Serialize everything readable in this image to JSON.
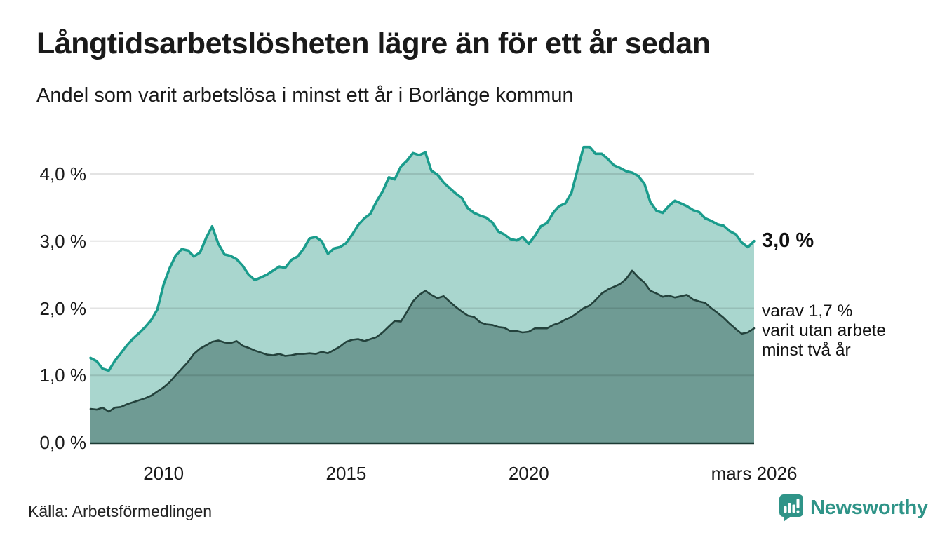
{
  "header": {
    "title": "Långtidsarbetslösheten lägre än för ett år sedan",
    "subtitle": "Andel som varit arbetslösa i minst ett år i Borlänge kommun"
  },
  "footer": {
    "source": "Källa: Arbetsförmedlingen",
    "brand": "Newsworthy",
    "brand_color": "#2f9488"
  },
  "chart_data": {
    "type": "area",
    "title": "Långtidsarbetslösheten lägre än för ett år sedan",
    "subtitle": "Andel som varit arbetslösa i minst ett år i Borlänge kommun",
    "unit": "%",
    "grid": true,
    "legend_position": "none",
    "xlabel": "",
    "ylabel": "",
    "ylim": [
      0,
      4.6
    ],
    "xlim": [
      2008,
      2026.25
    ],
    "y_axis": {
      "ticks": [
        {
          "label": "0,0 %",
          "v": 0
        },
        {
          "label": "1,0 %",
          "v": 1
        },
        {
          "label": "2,0 %",
          "v": 2
        },
        {
          "label": "3,0 %",
          "v": 3
        },
        {
          "label": "4,0 %",
          "v": 4
        }
      ]
    },
    "x_axis": {
      "ticks": [
        {
          "label": "2010",
          "t": 2010
        },
        {
          "label": "2015",
          "t": 2015
        },
        {
          "label": "2020",
          "t": 2020
        },
        {
          "label": "mars 2026",
          "t": 2026.17
        }
      ]
    },
    "annotations": {
      "end_value_label": "3,0 %",
      "sub_lines": [
        "varav 1,7 %",
        "varit utan arbete",
        "minst två år"
      ]
    },
    "series": [
      {
        "name": "Andel som varit arbetslösa i minst ett år",
        "line_color": "#1a9c8c",
        "fill_color": "#a9d6ce",
        "end_value": 3.0,
        "points": [
          [
            2008.0,
            1.26
          ],
          [
            2008.17,
            1.21
          ],
          [
            2008.33,
            1.1
          ],
          [
            2008.5,
            1.07
          ],
          [
            2008.67,
            1.22
          ],
          [
            2008.83,
            1.33
          ],
          [
            2009.0,
            1.45
          ],
          [
            2009.17,
            1.55
          ],
          [
            2009.33,
            1.63
          ],
          [
            2009.5,
            1.72
          ],
          [
            2009.67,
            1.83
          ],
          [
            2009.83,
            1.98
          ],
          [
            2010.0,
            2.35
          ],
          [
            2010.17,
            2.6
          ],
          [
            2010.33,
            2.78
          ],
          [
            2010.5,
            2.88
          ],
          [
            2010.67,
            2.86
          ],
          [
            2010.83,
            2.77
          ],
          [
            2011.0,
            2.83
          ],
          [
            2011.17,
            3.05
          ],
          [
            2011.33,
            3.22
          ],
          [
            2011.5,
            2.96
          ],
          [
            2011.67,
            2.8
          ],
          [
            2011.83,
            2.78
          ],
          [
            2012.0,
            2.73
          ],
          [
            2012.17,
            2.63
          ],
          [
            2012.33,
            2.5
          ],
          [
            2012.5,
            2.42
          ],
          [
            2012.67,
            2.46
          ],
          [
            2012.83,
            2.5
          ],
          [
            2013.0,
            2.56
          ],
          [
            2013.17,
            2.62
          ],
          [
            2013.33,
            2.6
          ],
          [
            2013.5,
            2.72
          ],
          [
            2013.67,
            2.77
          ],
          [
            2013.83,
            2.88
          ],
          [
            2014.0,
            3.04
          ],
          [
            2014.17,
            3.06
          ],
          [
            2014.33,
            3.0
          ],
          [
            2014.5,
            2.81
          ],
          [
            2014.67,
            2.89
          ],
          [
            2014.83,
            2.91
          ],
          [
            2015.0,
            2.97
          ],
          [
            2015.17,
            3.1
          ],
          [
            2015.33,
            3.24
          ],
          [
            2015.5,
            3.34
          ],
          [
            2015.67,
            3.41
          ],
          [
            2015.83,
            3.59
          ],
          [
            2016.0,
            3.74
          ],
          [
            2016.17,
            3.95
          ],
          [
            2016.33,
            3.92
          ],
          [
            2016.5,
            4.11
          ],
          [
            2016.67,
            4.2
          ],
          [
            2016.83,
            4.31
          ],
          [
            2017.0,
            4.28
          ],
          [
            2017.17,
            4.32
          ],
          [
            2017.33,
            4.05
          ],
          [
            2017.5,
            3.99
          ],
          [
            2017.67,
            3.87
          ],
          [
            2017.83,
            3.79
          ],
          [
            2018.0,
            3.71
          ],
          [
            2018.17,
            3.64
          ],
          [
            2018.33,
            3.49
          ],
          [
            2018.5,
            3.42
          ],
          [
            2018.67,
            3.38
          ],
          [
            2018.83,
            3.35
          ],
          [
            2019.0,
            3.28
          ],
          [
            2019.17,
            3.14
          ],
          [
            2019.33,
            3.1
          ],
          [
            2019.5,
            3.03
          ],
          [
            2019.67,
            3.01
          ],
          [
            2019.83,
            3.06
          ],
          [
            2020.0,
            2.96
          ],
          [
            2020.17,
            3.08
          ],
          [
            2020.33,
            3.22
          ],
          [
            2020.5,
            3.27
          ],
          [
            2020.67,
            3.42
          ],
          [
            2020.83,
            3.52
          ],
          [
            2021.0,
            3.56
          ],
          [
            2021.17,
            3.72
          ],
          [
            2021.33,
            4.05
          ],
          [
            2021.5,
            4.4
          ],
          [
            2021.67,
            4.4
          ],
          [
            2021.83,
            4.3
          ],
          [
            2022.0,
            4.3
          ],
          [
            2022.17,
            4.22
          ],
          [
            2022.33,
            4.13
          ],
          [
            2022.5,
            4.09
          ],
          [
            2022.67,
            4.04
          ],
          [
            2022.83,
            4.02
          ],
          [
            2023.0,
            3.97
          ],
          [
            2023.17,
            3.85
          ],
          [
            2023.33,
            3.58
          ],
          [
            2023.5,
            3.45
          ],
          [
            2023.67,
            3.42
          ],
          [
            2023.83,
            3.52
          ],
          [
            2024.0,
            3.6
          ],
          [
            2024.17,
            3.56
          ],
          [
            2024.33,
            3.52
          ],
          [
            2024.5,
            3.46
          ],
          [
            2024.67,
            3.43
          ],
          [
            2024.83,
            3.34
          ],
          [
            2025.0,
            3.3
          ],
          [
            2025.17,
            3.25
          ],
          [
            2025.33,
            3.23
          ],
          [
            2025.5,
            3.15
          ],
          [
            2025.67,
            3.1
          ],
          [
            2025.83,
            2.98
          ],
          [
            2026.0,
            2.91
          ],
          [
            2026.17,
            3.0
          ]
        ]
      },
      {
        "name": "varav utan arbete minst två år",
        "line_color": "#24423c",
        "fill_color": "#6f9b94",
        "end_value": 1.7,
        "points": [
          [
            2008.0,
            0.5
          ],
          [
            2008.17,
            0.49
          ],
          [
            2008.33,
            0.52
          ],
          [
            2008.5,
            0.46
          ],
          [
            2008.67,
            0.52
          ],
          [
            2008.83,
            0.53
          ],
          [
            2009.0,
            0.57
          ],
          [
            2009.17,
            0.6
          ],
          [
            2009.33,
            0.63
          ],
          [
            2009.5,
            0.66
          ],
          [
            2009.67,
            0.7
          ],
          [
            2009.83,
            0.76
          ],
          [
            2010.0,
            0.82
          ],
          [
            2010.17,
            0.9
          ],
          [
            2010.33,
            1.0
          ],
          [
            2010.5,
            1.1
          ],
          [
            2010.67,
            1.2
          ],
          [
            2010.83,
            1.32
          ],
          [
            2011.0,
            1.4
          ],
          [
            2011.17,
            1.45
          ],
          [
            2011.33,
            1.5
          ],
          [
            2011.5,
            1.52
          ],
          [
            2011.67,
            1.49
          ],
          [
            2011.83,
            1.48
          ],
          [
            2012.0,
            1.51
          ],
          [
            2012.17,
            1.44
          ],
          [
            2012.33,
            1.41
          ],
          [
            2012.5,
            1.37
          ],
          [
            2012.67,
            1.34
          ],
          [
            2012.83,
            1.31
          ],
          [
            2013.0,
            1.3
          ],
          [
            2013.17,
            1.32
          ],
          [
            2013.33,
            1.29
          ],
          [
            2013.5,
            1.3
          ],
          [
            2013.67,
            1.32
          ],
          [
            2013.83,
            1.32
          ],
          [
            2014.0,
            1.33
          ],
          [
            2014.17,
            1.32
          ],
          [
            2014.33,
            1.35
          ],
          [
            2014.5,
            1.33
          ],
          [
            2014.67,
            1.38
          ],
          [
            2014.83,
            1.43
          ],
          [
            2015.0,
            1.5
          ],
          [
            2015.17,
            1.53
          ],
          [
            2015.33,
            1.54
          ],
          [
            2015.5,
            1.51
          ],
          [
            2015.67,
            1.54
          ],
          [
            2015.83,
            1.57
          ],
          [
            2016.0,
            1.64
          ],
          [
            2016.17,
            1.73
          ],
          [
            2016.33,
            1.81
          ],
          [
            2016.5,
            1.8
          ],
          [
            2016.67,
            1.95
          ],
          [
            2016.83,
            2.1
          ],
          [
            2017.0,
            2.2
          ],
          [
            2017.17,
            2.26
          ],
          [
            2017.33,
            2.2
          ],
          [
            2017.5,
            2.15
          ],
          [
            2017.67,
            2.18
          ],
          [
            2017.83,
            2.1
          ],
          [
            2018.0,
            2.02
          ],
          [
            2018.17,
            1.95
          ],
          [
            2018.33,
            1.89
          ],
          [
            2018.5,
            1.87
          ],
          [
            2018.67,
            1.79
          ],
          [
            2018.83,
            1.76
          ],
          [
            2019.0,
            1.75
          ],
          [
            2019.17,
            1.72
          ],
          [
            2019.33,
            1.71
          ],
          [
            2019.5,
            1.66
          ],
          [
            2019.67,
            1.66
          ],
          [
            2019.83,
            1.64
          ],
          [
            2020.0,
            1.65
          ],
          [
            2020.17,
            1.7
          ],
          [
            2020.33,
            1.7
          ],
          [
            2020.5,
            1.7
          ],
          [
            2020.67,
            1.75
          ],
          [
            2020.83,
            1.78
          ],
          [
            2021.0,
            1.83
          ],
          [
            2021.17,
            1.87
          ],
          [
            2021.33,
            1.93
          ],
          [
            2021.5,
            2.0
          ],
          [
            2021.67,
            2.04
          ],
          [
            2021.83,
            2.12
          ],
          [
            2022.0,
            2.22
          ],
          [
            2022.17,
            2.28
          ],
          [
            2022.33,
            2.32
          ],
          [
            2022.5,
            2.36
          ],
          [
            2022.67,
            2.44
          ],
          [
            2022.83,
            2.56
          ],
          [
            2023.0,
            2.46
          ],
          [
            2023.17,
            2.38
          ],
          [
            2023.33,
            2.26
          ],
          [
            2023.5,
            2.22
          ],
          [
            2023.67,
            2.17
          ],
          [
            2023.83,
            2.19
          ],
          [
            2024.0,
            2.16
          ],
          [
            2024.17,
            2.18
          ],
          [
            2024.33,
            2.2
          ],
          [
            2024.5,
            2.13
          ],
          [
            2024.67,
            2.1
          ],
          [
            2024.83,
            2.08
          ],
          [
            2025.0,
            2.0
          ],
          [
            2025.17,
            1.93
          ],
          [
            2025.33,
            1.86
          ],
          [
            2025.5,
            1.77
          ],
          [
            2025.67,
            1.69
          ],
          [
            2025.83,
            1.62
          ],
          [
            2026.0,
            1.64
          ],
          [
            2026.17,
            1.7
          ]
        ]
      }
    ]
  }
}
